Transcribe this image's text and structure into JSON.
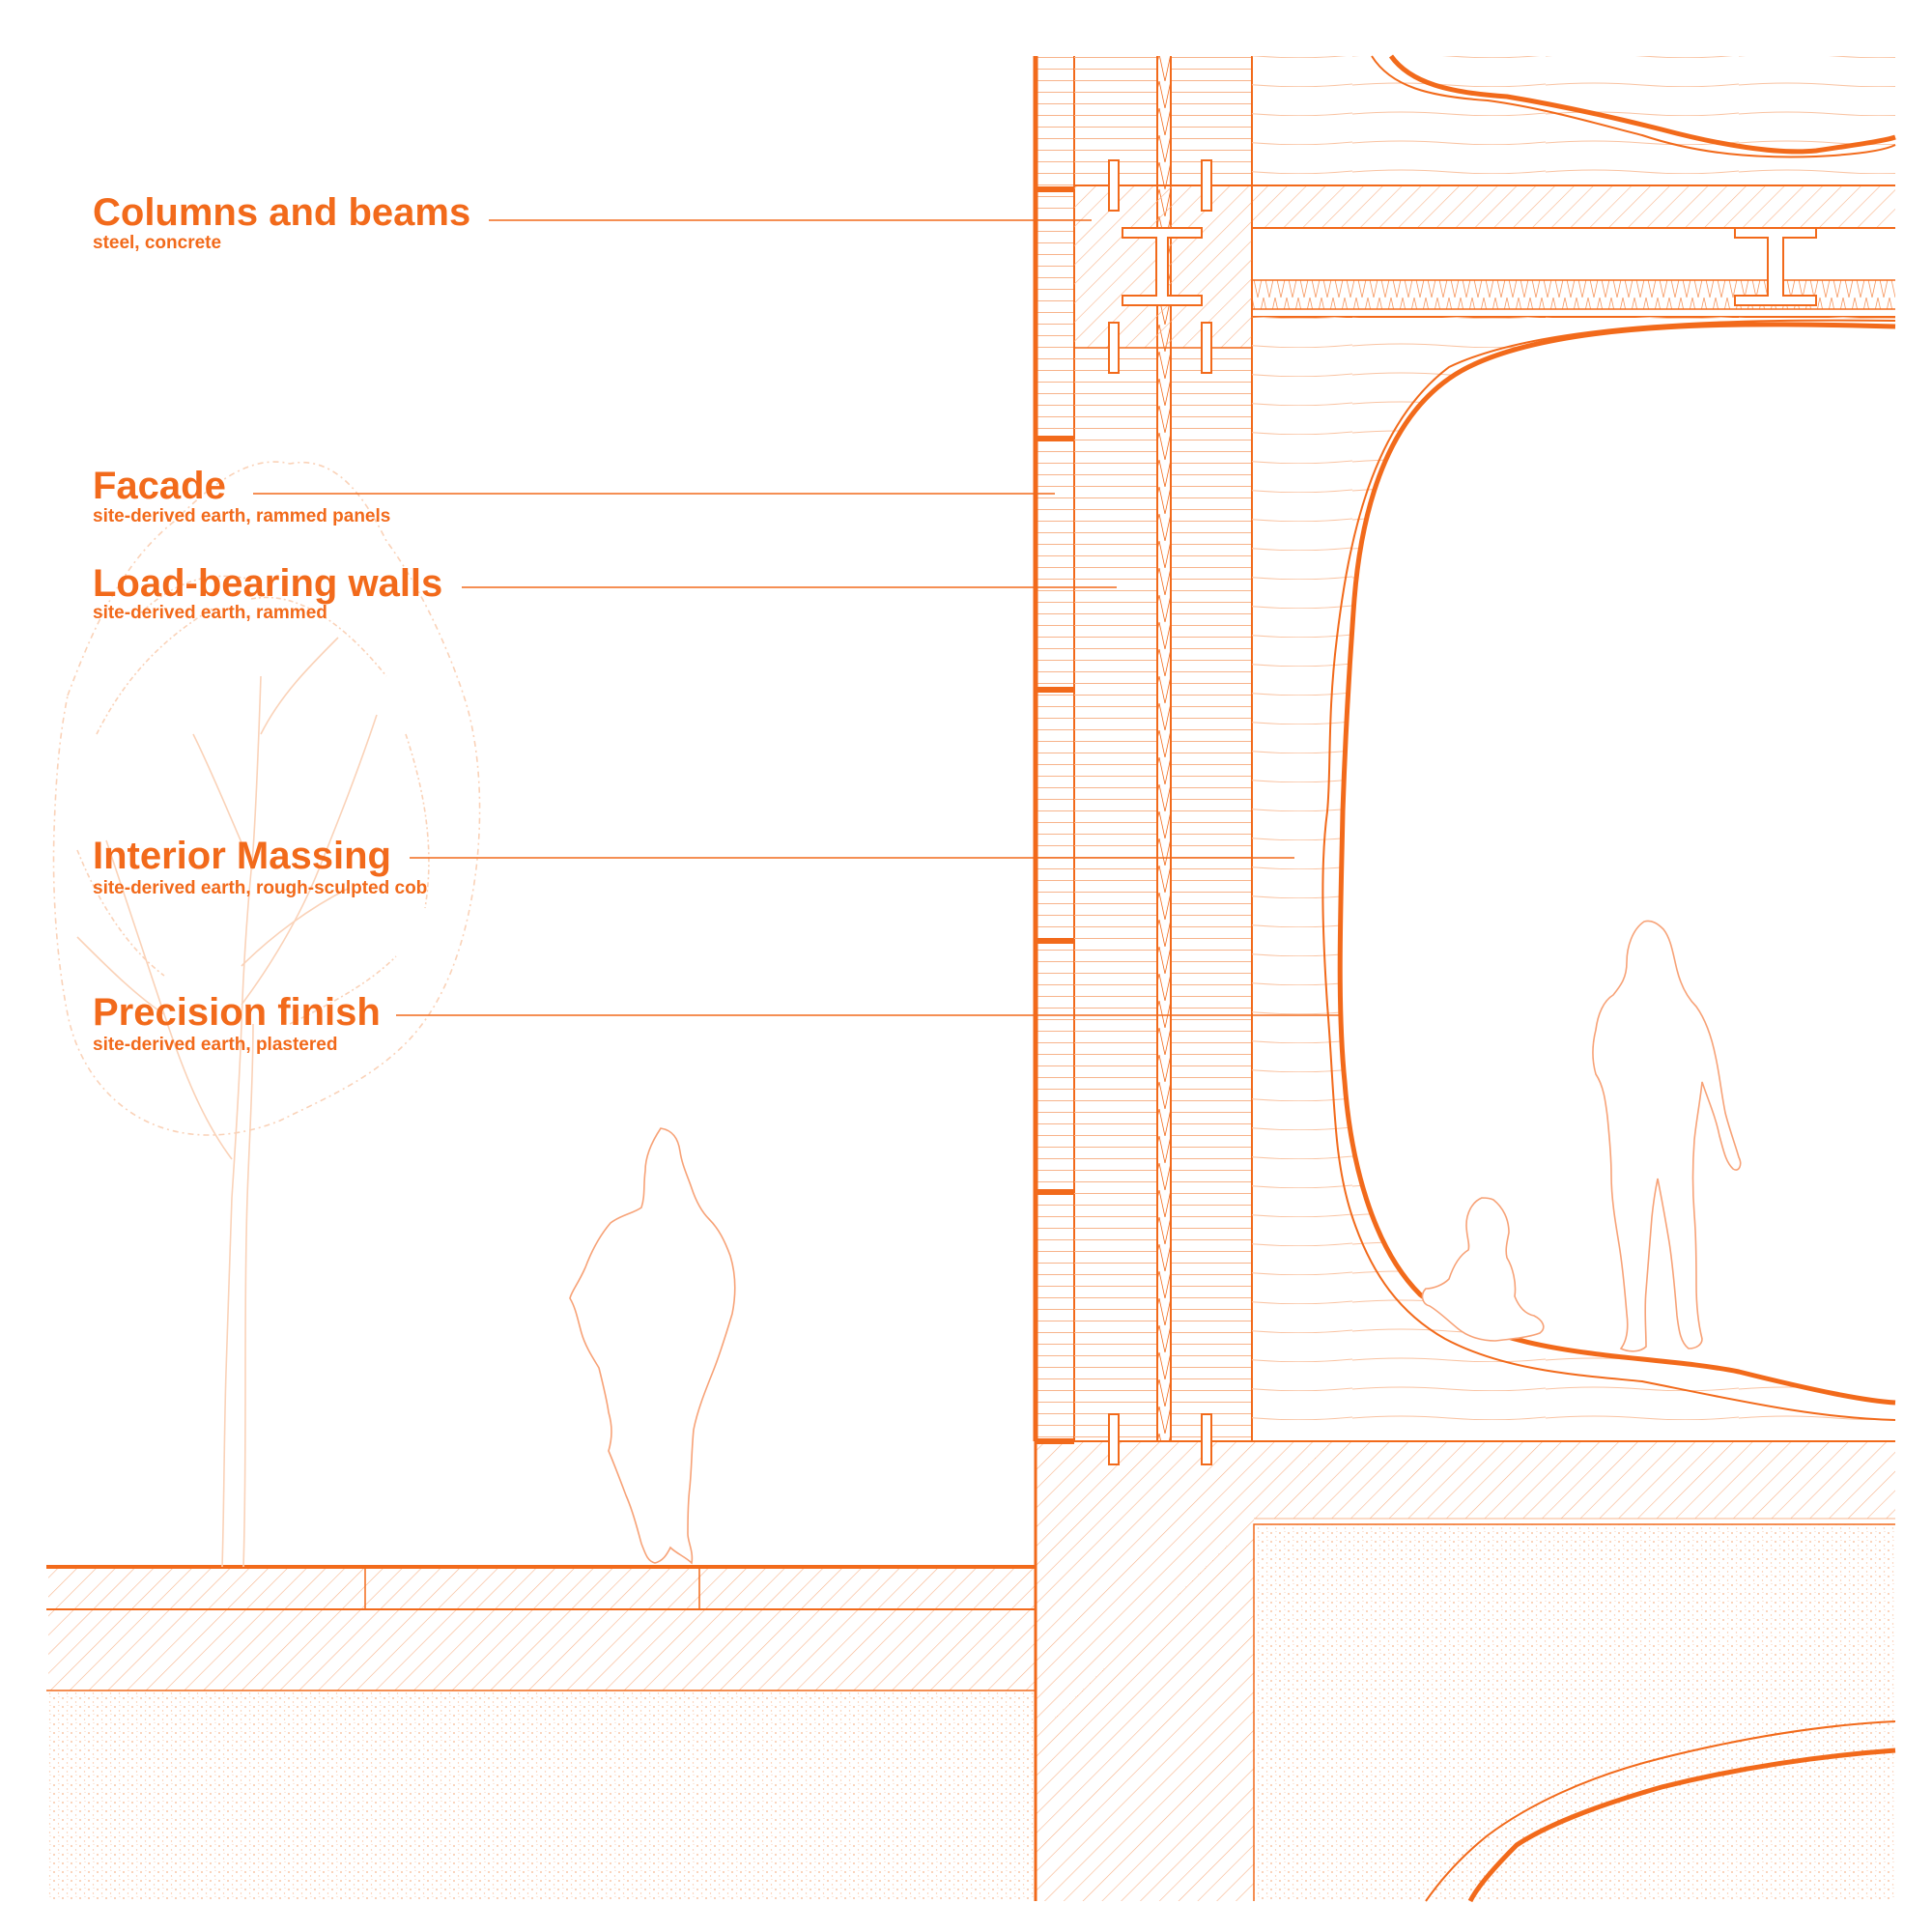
{
  "colors": {
    "accent": "#F26A1B",
    "light": "#F7B48C",
    "faint": "#FAD2B8",
    "background": "#FFFFFF"
  },
  "labels": [
    {
      "title": "Columns and beams",
      "subtitle": "steel, concrete"
    },
    {
      "title": "Facade",
      "subtitle": "site-derived earth, rammed panels"
    },
    {
      "title": "Load-bearing walls",
      "subtitle": "site-derived earth, rammed"
    },
    {
      "title": "Interior Massing",
      "subtitle": "site-derived earth, rough-sculpted cob"
    },
    {
      "title": "Precision finish",
      "subtitle": "site-derived earth, plastered"
    }
  ]
}
